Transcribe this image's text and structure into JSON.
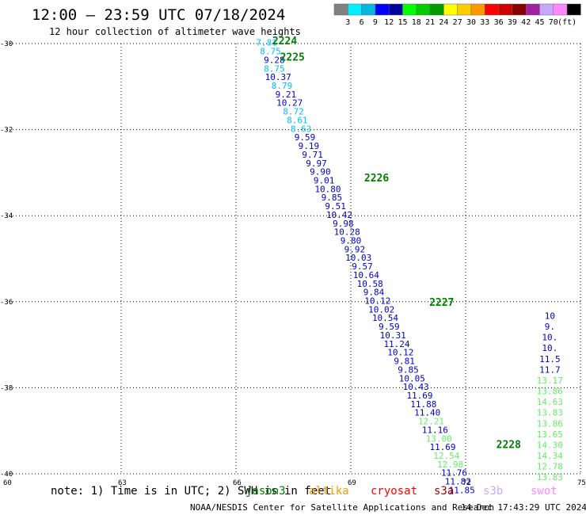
{
  "header": {
    "title": "12:00 – 23:59 UTC 07/18/2024",
    "subtitle": "12 hour collection of altimeter wave heights"
  },
  "footer": {
    "note": "note: 1) Time is in UTC; 2) SWH is in feet",
    "credit": "NOAA/NESDIS Center for Satellite Applications and Research",
    "timestamp": "14 Dec 17:43:29 UTC 2024"
  },
  "satellites": [
    {
      "name": "jason3",
      "color": "#008000"
    },
    {
      "name": "altika",
      "color": "#ff9900"
    },
    {
      "name": "cryosat",
      "color": "#ff0000"
    },
    {
      "name": "s3a",
      "color": "#990000"
    },
    {
      "name": "s3b",
      "color": "#c8a8ff"
    },
    {
      "name": "swot",
      "color": "#ff88ff"
    }
  ],
  "chart_data": {
    "type": "scatter",
    "xlim": [
      60,
      75
    ],
    "ylim": [
      -40,
      -30
    ],
    "x_ticks": [
      60,
      63,
      66,
      69,
      72,
      75
    ],
    "y_ticks": [
      -30,
      -32,
      -34,
      -36,
      -38,
      -40
    ],
    "grid": true,
    "color_scale": {
      "unit": "(ft)",
      "labels": [
        "3",
        "6",
        "9",
        "12",
        "15",
        "18",
        "21",
        "24",
        "27",
        "30",
        "33",
        "36",
        "39",
        "42",
        "45",
        "70"
      ],
      "colors": [
        "#808080",
        "#00f0ff",
        "#00b8e0",
        "#0000ff",
        "#00009c",
        "#00ff00",
        "#00cc00",
        "#009c00",
        "#ffff00",
        "#ffcc00",
        "#ff9900",
        "#ff0000",
        "#cc0000",
        "#880000",
        "#a020a0",
        "#c8a8ff",
        "#ff88ff",
        "#000000"
      ]
    },
    "passes": [
      {
        "label": "2224",
        "lon": 66.95,
        "lat": -30.02
      },
      {
        "label": "2225",
        "lon": 67.15,
        "lat": -30.4
      },
      {
        "label": "2226",
        "lon": 69.35,
        "lat": -33.2
      },
      {
        "label": "2227",
        "lon": 71.05,
        "lat": -36.1
      },
      {
        "label": "2228",
        "lon": 72.8,
        "lat": -39.4
      }
    ],
    "points": [
      {
        "lon": 66.8,
        "lat": -30.05,
        "swh": "7.81"
      },
      {
        "lon": 66.9,
        "lat": -30.25,
        "swh": "8.75"
      },
      {
        "lon": 67.0,
        "lat": -30.45,
        "swh": "9.28"
      },
      {
        "lon": 67.0,
        "lat": -30.65,
        "swh": "8.75"
      },
      {
        "lon": 67.1,
        "lat": -30.85,
        "swh": "10.37"
      },
      {
        "lon": 67.2,
        "lat": -31.05,
        "swh": "8.79"
      },
      {
        "lon": 67.3,
        "lat": -31.25,
        "swh": "9.21"
      },
      {
        "lon": 67.4,
        "lat": -31.45,
        "swh": "10.27"
      },
      {
        "lon": 67.5,
        "lat": -31.65,
        "swh": "8.72"
      },
      {
        "lon": 67.6,
        "lat": -31.85,
        "swh": "8.61"
      },
      {
        "lon": 67.7,
        "lat": -32.05,
        "swh": "8.63"
      },
      {
        "lon": 67.8,
        "lat": -32.25,
        "swh": "9.59"
      },
      {
        "lon": 67.9,
        "lat": -32.45,
        "swh": "9.19"
      },
      {
        "lon": 68.0,
        "lat": -32.65,
        "swh": "9.71"
      },
      {
        "lon": 68.1,
        "lat": -32.85,
        "swh": "9.97"
      },
      {
        "lon": 68.2,
        "lat": -33.05,
        "swh": "9.90"
      },
      {
        "lon": 68.3,
        "lat": -33.25,
        "swh": "9.01"
      },
      {
        "lon": 68.4,
        "lat": -33.45,
        "swh": "10.80"
      },
      {
        "lon": 68.5,
        "lat": -33.65,
        "swh": "9.85"
      },
      {
        "lon": 68.6,
        "lat": -33.85,
        "swh": "9.51"
      },
      {
        "lon": 68.7,
        "lat": -34.05,
        "swh": "10.42"
      },
      {
        "lon": 68.8,
        "lat": -34.25,
        "swh": "9.98"
      },
      {
        "lon": 68.9,
        "lat": -34.45,
        "swh": "10.28"
      },
      {
        "lon": 69.0,
        "lat": -34.65,
        "swh": "9.80"
      },
      {
        "lon": 69.1,
        "lat": -34.85,
        "swh": "9.92"
      },
      {
        "lon": 69.2,
        "lat": -35.05,
        "swh": "10.03"
      },
      {
        "lon": 69.3,
        "lat": -35.25,
        "swh": "9.57"
      },
      {
        "lon": 69.4,
        "lat": -35.45,
        "swh": "10.64"
      },
      {
        "lon": 69.5,
        "lat": -35.65,
        "swh": "10.58"
      },
      {
        "lon": 69.6,
        "lat": -35.85,
        "swh": "9.84"
      },
      {
        "lon": 69.7,
        "lat": -36.05,
        "swh": "10.12"
      },
      {
        "lon": 69.8,
        "lat": -36.25,
        "swh": "10.02"
      },
      {
        "lon": 69.9,
        "lat": -36.45,
        "swh": "10.54"
      },
      {
        "lon": 70.0,
        "lat": -36.65,
        "swh": "9.59"
      },
      {
        "lon": 70.1,
        "lat": -36.85,
        "swh": "10.31"
      },
      {
        "lon": 70.2,
        "lat": -37.05,
        "swh": "11.24"
      },
      {
        "lon": 70.3,
        "lat": -37.25,
        "swh": "10.12"
      },
      {
        "lon": 70.4,
        "lat": -37.45,
        "swh": "9.81"
      },
      {
        "lon": 70.5,
        "lat": -37.65,
        "swh": "9.85"
      },
      {
        "lon": 70.6,
        "lat": -37.85,
        "swh": "10.05"
      },
      {
        "lon": 70.7,
        "lat": -38.05,
        "swh": "10.43"
      },
      {
        "lon": 70.8,
        "lat": -38.25,
        "swh": "11.69"
      },
      {
        "lon": 70.9,
        "lat": -38.45,
        "swh": "11.88"
      },
      {
        "lon": 71.0,
        "lat": -38.65,
        "swh": "11.40"
      },
      {
        "lon": 71.1,
        "lat": -38.85,
        "swh": "12.21"
      },
      {
        "lon": 71.2,
        "lat": -39.05,
        "swh": "11.16"
      },
      {
        "lon": 71.3,
        "lat": -39.25,
        "swh": "13.00"
      },
      {
        "lon": 71.4,
        "lat": -39.45,
        "swh": "11.69"
      },
      {
        "lon": 71.5,
        "lat": -39.65,
        "swh": "12.54"
      },
      {
        "lon": 71.6,
        "lat": -39.85,
        "swh": "12.98"
      },
      {
        "lon": 71.7,
        "lat": -40.05,
        "swh": "11.76"
      },
      {
        "lon": 71.8,
        "lat": -40.25,
        "swh": "11.82"
      },
      {
        "lon": 71.9,
        "lat": -40.45,
        "swh": "11.85"
      },
      {
        "lon": 74.2,
        "lat": -36.4,
        "swh": "10"
      },
      {
        "lon": 74.2,
        "lat": -36.65,
        "swh": "9."
      },
      {
        "lon": 74.2,
        "lat": -36.9,
        "swh": "10."
      },
      {
        "lon": 74.2,
        "lat": -37.15,
        "swh": "10."
      },
      {
        "lon": 74.2,
        "lat": -37.4,
        "swh": "11.5"
      },
      {
        "lon": 74.2,
        "lat": -37.65,
        "swh": "11.7"
      },
      {
        "lon": 74.2,
        "lat": -37.9,
        "swh": "13.17"
      },
      {
        "lon": 74.2,
        "lat": -38.15,
        "swh": "13.86"
      },
      {
        "lon": 74.2,
        "lat": -38.4,
        "swh": "14.63"
      },
      {
        "lon": 74.2,
        "lat": -38.65,
        "swh": "13.83"
      },
      {
        "lon": 74.2,
        "lat": -38.9,
        "swh": "13.86"
      },
      {
        "lon": 74.2,
        "lat": -39.15,
        "swh": "13.65"
      },
      {
        "lon": 74.2,
        "lat": -39.4,
        "swh": "14.30"
      },
      {
        "lon": 74.2,
        "lat": -39.65,
        "swh": "14.34"
      },
      {
        "lon": 74.2,
        "lat": -39.9,
        "swh": "12.78"
      },
      {
        "lon": 74.2,
        "lat": -40.15,
        "swh": "13.83"
      }
    ]
  }
}
